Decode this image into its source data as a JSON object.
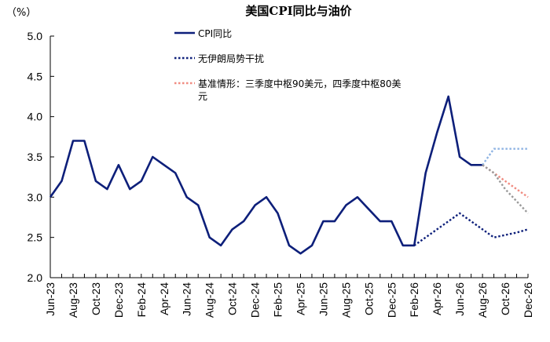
{
  "chart_data": {
    "type": "line",
    "title": "美国CPI同比与油价",
    "unit_label": "（%）",
    "ylim": [
      2.0,
      5.0
    ],
    "y_ticks": [
      "2.0",
      "2.5",
      "3.0",
      "3.5",
      "4.0",
      "4.5",
      "5.0"
    ],
    "x_tick_labels": [
      "Jun-23",
      "Aug-23",
      "Oct-23",
      "Dec-23",
      "Feb-24",
      "Apr-24",
      "Jun-24",
      "Aug-24",
      "Oct-24",
      "Dec-24",
      "Feb-25",
      "Apr-25",
      "Jun-25",
      "Aug-25",
      "Oct-25",
      "Dec-25",
      "Feb-26",
      "Apr-26",
      "Jun-26",
      "Aug-26",
      "Oct-26",
      "Dec-26"
    ],
    "x": [
      "Jun-23",
      "Jul-23",
      "Aug-23",
      "Sep-23",
      "Oct-23",
      "Nov-23",
      "Dec-23",
      "Jan-24",
      "Feb-24",
      "Mar-24",
      "Apr-24",
      "May-24",
      "Jun-24",
      "Jul-24",
      "Aug-24",
      "Sep-24",
      "Oct-24",
      "Nov-24",
      "Dec-24",
      "Jan-25",
      "Feb-25",
      "Mar-25",
      "Apr-25",
      "May-25",
      "Jun-25",
      "Jul-25",
      "Aug-25",
      "Sep-25",
      "Oct-25",
      "Nov-25",
      "Dec-25",
      "Jan-26",
      "Feb-26",
      "Mar-26",
      "Apr-26",
      "May-26",
      "Jun-26",
      "Jul-26",
      "Aug-26",
      "Sep-26",
      "Oct-26",
      "Nov-26",
      "Dec-26"
    ],
    "series": [
      {
        "name": "CPI同比",
        "color": "#0d1f7a",
        "style": "solid",
        "values": [
          3.0,
          3.2,
          3.7,
          3.7,
          3.2,
          3.1,
          3.4,
          3.1,
          3.2,
          3.5,
          3.4,
          3.3,
          3.0,
          2.9,
          2.5,
          2.4,
          2.6,
          2.7,
          2.9,
          3.0,
          2.8,
          2.4,
          2.3,
          2.4,
          2.7,
          2.7,
          2.9,
          3.0,
          2.85,
          2.7,
          2.7,
          2.4,
          2.4,
          3.3,
          3.8,
          4.25,
          3.5,
          3.4,
          3.4,
          null,
          null,
          null,
          null
        ]
      },
      {
        "name": "无伊朗局势干扰",
        "color": "#0d1f7a",
        "style": "dotted",
        "values": [
          null,
          null,
          null,
          null,
          null,
          null,
          null,
          null,
          null,
          null,
          null,
          null,
          null,
          null,
          null,
          null,
          null,
          null,
          null,
          null,
          null,
          null,
          null,
          null,
          null,
          null,
          null,
          null,
          null,
          null,
          null,
          null,
          2.4,
          2.5,
          2.6,
          2.7,
          2.8,
          2.7,
          2.6,
          2.5,
          2.53,
          2.56,
          2.6
        ]
      },
      {
        "name": "基准情形：三季度中枢90美元，四季度中枢80美元",
        "color": "#f08b80",
        "style": "dotted",
        "values": [
          null,
          null,
          null,
          null,
          null,
          null,
          null,
          null,
          null,
          null,
          null,
          null,
          null,
          null,
          null,
          null,
          null,
          null,
          null,
          null,
          null,
          null,
          null,
          null,
          null,
          null,
          null,
          null,
          null,
          null,
          null,
          null,
          null,
          null,
          null,
          null,
          null,
          null,
          3.4,
          3.3,
          3.2,
          3.1,
          3.0
        ]
      },
      {
        "color": "#8fb4e3",
        "style": "dotted",
        "values": [
          null,
          null,
          null,
          null,
          null,
          null,
          null,
          null,
          null,
          null,
          null,
          null,
          null,
          null,
          null,
          null,
          null,
          null,
          null,
          null,
          null,
          null,
          null,
          null,
          null,
          null,
          null,
          null,
          null,
          null,
          null,
          null,
          null,
          null,
          null,
          null,
          null,
          null,
          3.4,
          3.6,
          3.6,
          3.6,
          3.6
        ]
      },
      {
        "color": "#9a9a9a",
        "style": "dotted",
        "values": [
          null,
          null,
          null,
          null,
          null,
          null,
          null,
          null,
          null,
          null,
          null,
          null,
          null,
          null,
          null,
          null,
          null,
          null,
          null,
          null,
          null,
          null,
          null,
          null,
          null,
          null,
          null,
          null,
          null,
          null,
          null,
          null,
          null,
          null,
          null,
          null,
          null,
          null,
          3.4,
          3.3,
          3.1,
          2.95,
          2.8
        ]
      }
    ],
    "legend": [
      {
        "lines": [
          "CPI同比"
        ],
        "color": "#0d1f7a",
        "style": "solid"
      },
      {
        "lines": [
          "无伊朗局势干扰"
        ],
        "color": "#0d1f7a",
        "style": "dotted"
      },
      {
        "lines": [
          "基准情形：三季度中枢90美元，四季度中枢80美",
          "元"
        ],
        "color": "#f08b80",
        "style": "dotted"
      }
    ]
  }
}
